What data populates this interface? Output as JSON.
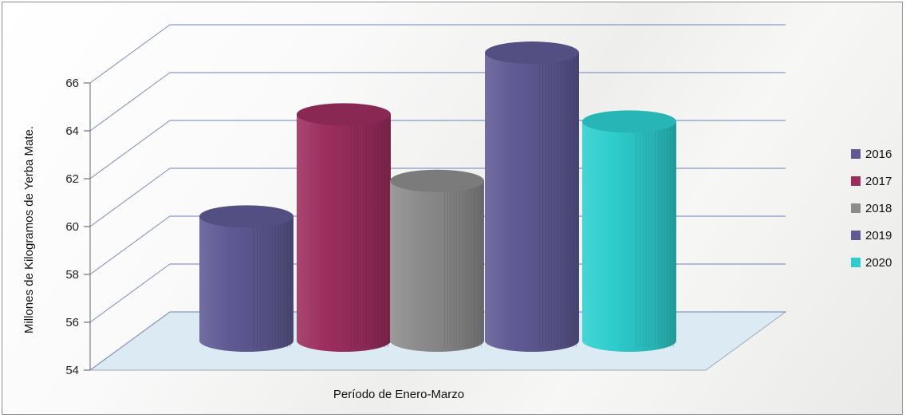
{
  "chart_data": {
    "type": "bar",
    "style": "3d-cylinder",
    "categories": [
      "Período de Enero-Marzo"
    ],
    "series": [
      {
        "name": "2016",
        "values": [
          59.3
        ],
        "color": "#5f5a94"
      },
      {
        "name": "2017",
        "values": [
          63.6
        ],
        "color": "#9c2e5e"
      },
      {
        "name": "2018",
        "values": [
          60.8
        ],
        "color": "#8c8c8c"
      },
      {
        "name": "2019",
        "values": [
          66.2
        ],
        "color": "#5f5a94"
      },
      {
        "name": "2020",
        "values": [
          63.3
        ],
        "color": "#2ecece"
      }
    ],
    "xlabel": "Período de Enero-Marzo",
    "ylabel": "Millones de Kilogramos de Yerba Mate.",
    "ylim": [
      54,
      66
    ],
    "yticks": [
      "54",
      "56",
      "58",
      "60",
      "62",
      "64",
      "66"
    ],
    "grid": true,
    "legend_position": "right"
  }
}
